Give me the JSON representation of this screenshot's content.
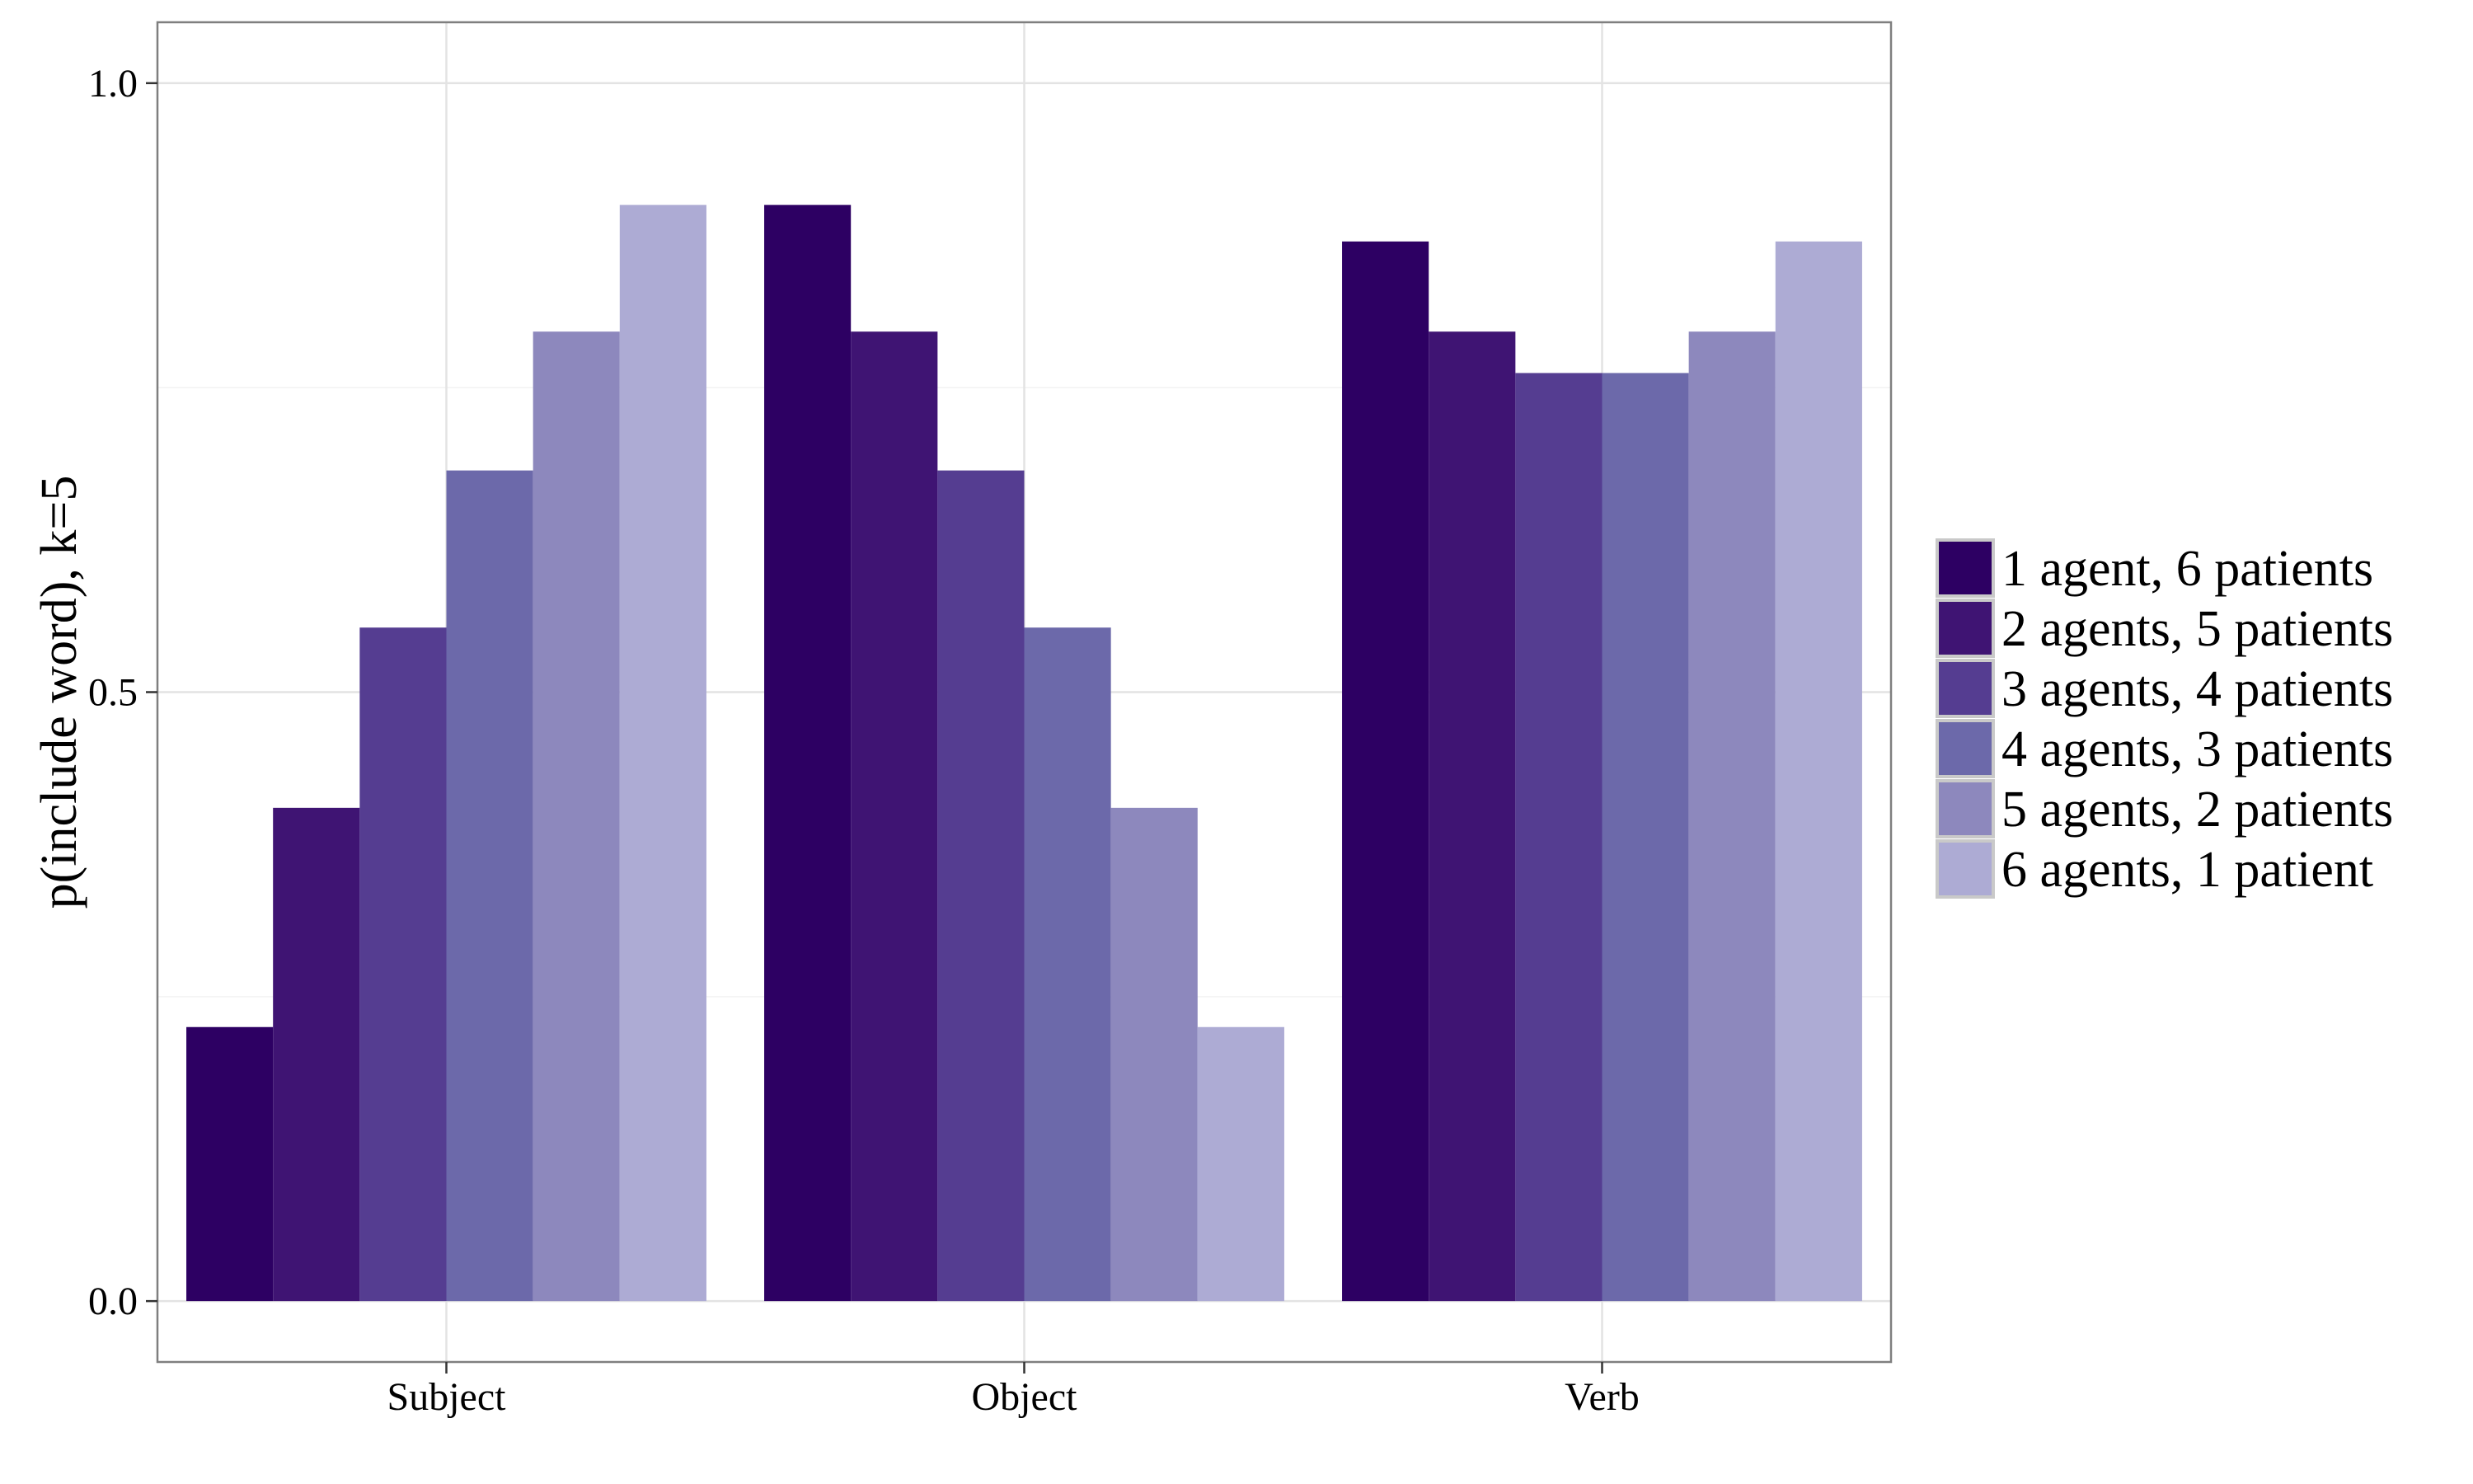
{
  "chart_data": {
    "type": "bar",
    "title": "",
    "xlabel": "",
    "ylabel": "p(include word), k=5",
    "categories": [
      "Subject",
      "Object",
      "Verb"
    ],
    "ylim": [
      -0.05,
      1.05
    ],
    "yticks": [
      "0.0",
      "0.5",
      "1.0"
    ],
    "grid": true,
    "legend_position": "right",
    "series": [
      {
        "name": "1 agent, 6 patients",
        "color": "#2d0063",
        "values": [
          0.225,
          0.9,
          0.87
        ]
      },
      {
        "name": "2 agents, 5 patients",
        "color": "#3f1473",
        "values": [
          0.405,
          0.796,
          0.796
        ]
      },
      {
        "name": "3 agents, 4 patients",
        "color": "#553d91",
        "values": [
          0.553,
          0.682,
          0.762
        ]
      },
      {
        "name": "4 agents, 3 patients",
        "color": "#6c69aa",
        "values": [
          0.682,
          0.553,
          0.762
        ]
      },
      {
        "name": "5 agents, 2 patients",
        "color": "#8d88bd",
        "values": [
          0.796,
          0.405,
          0.796
        ]
      },
      {
        "name": "6 agents, 1 patient",
        "color": "#adabd4",
        "values": [
          0.9,
          0.225,
          0.87
        ]
      }
    ]
  }
}
